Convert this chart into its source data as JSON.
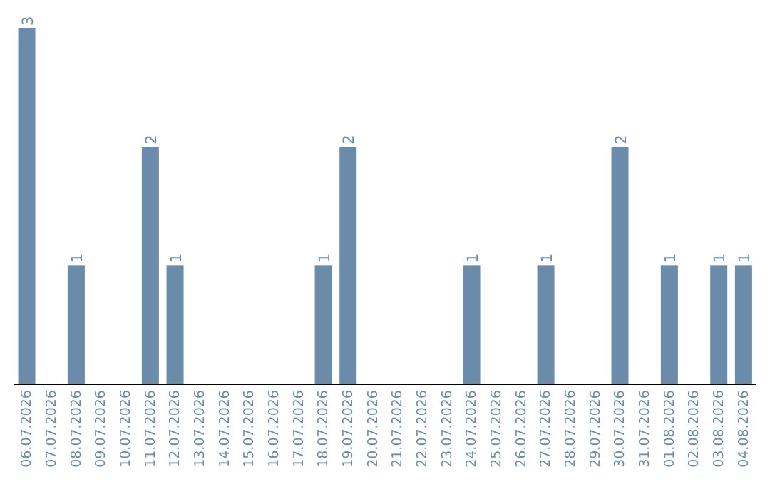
{
  "chart_data": {
    "type": "bar",
    "categories": [
      "06.07.2026",
      "07.07.2026",
      "08.07.2026",
      "09.07.2026",
      "10.07.2026",
      "11.07.2026",
      "12.07.2026",
      "13.07.2026",
      "14.07.2026",
      "15.07.2026",
      "16.07.2026",
      "17.07.2026",
      "18.07.2026",
      "19.07.2026",
      "20.07.2026",
      "21.07.2026",
      "22.07.2026",
      "23.07.2026",
      "24.07.2026",
      "25.07.2026",
      "26.07.2026",
      "27.07.2026",
      "28.07.2026",
      "29.07.2026",
      "30.07.2026",
      "31.07.2026",
      "01.08.2026",
      "02.08.2026",
      "03.08.2026",
      "04.08.2026"
    ],
    "values": [
      3,
      0,
      1,
      0,
      0,
      2,
      1,
      0,
      0,
      0,
      0,
      0,
      1,
      2,
      0,
      0,
      0,
      0,
      1,
      0,
      0,
      1,
      0,
      0,
      2,
      0,
      1,
      0,
      1,
      1
    ],
    "value_labels": [
      "3",
      null,
      "1",
      null,
      null,
      "2",
      "1",
      null,
      null,
      null,
      null,
      null,
      "1",
      "2",
      null,
      null,
      null,
      null,
      "1",
      null,
      null,
      "1",
      null,
      null,
      "2",
      null,
      "1",
      null,
      "1",
      "1"
    ],
    "color": "#6a8caa",
    "grid": false,
    "legend": false,
    "tick_labels": "x"
  }
}
